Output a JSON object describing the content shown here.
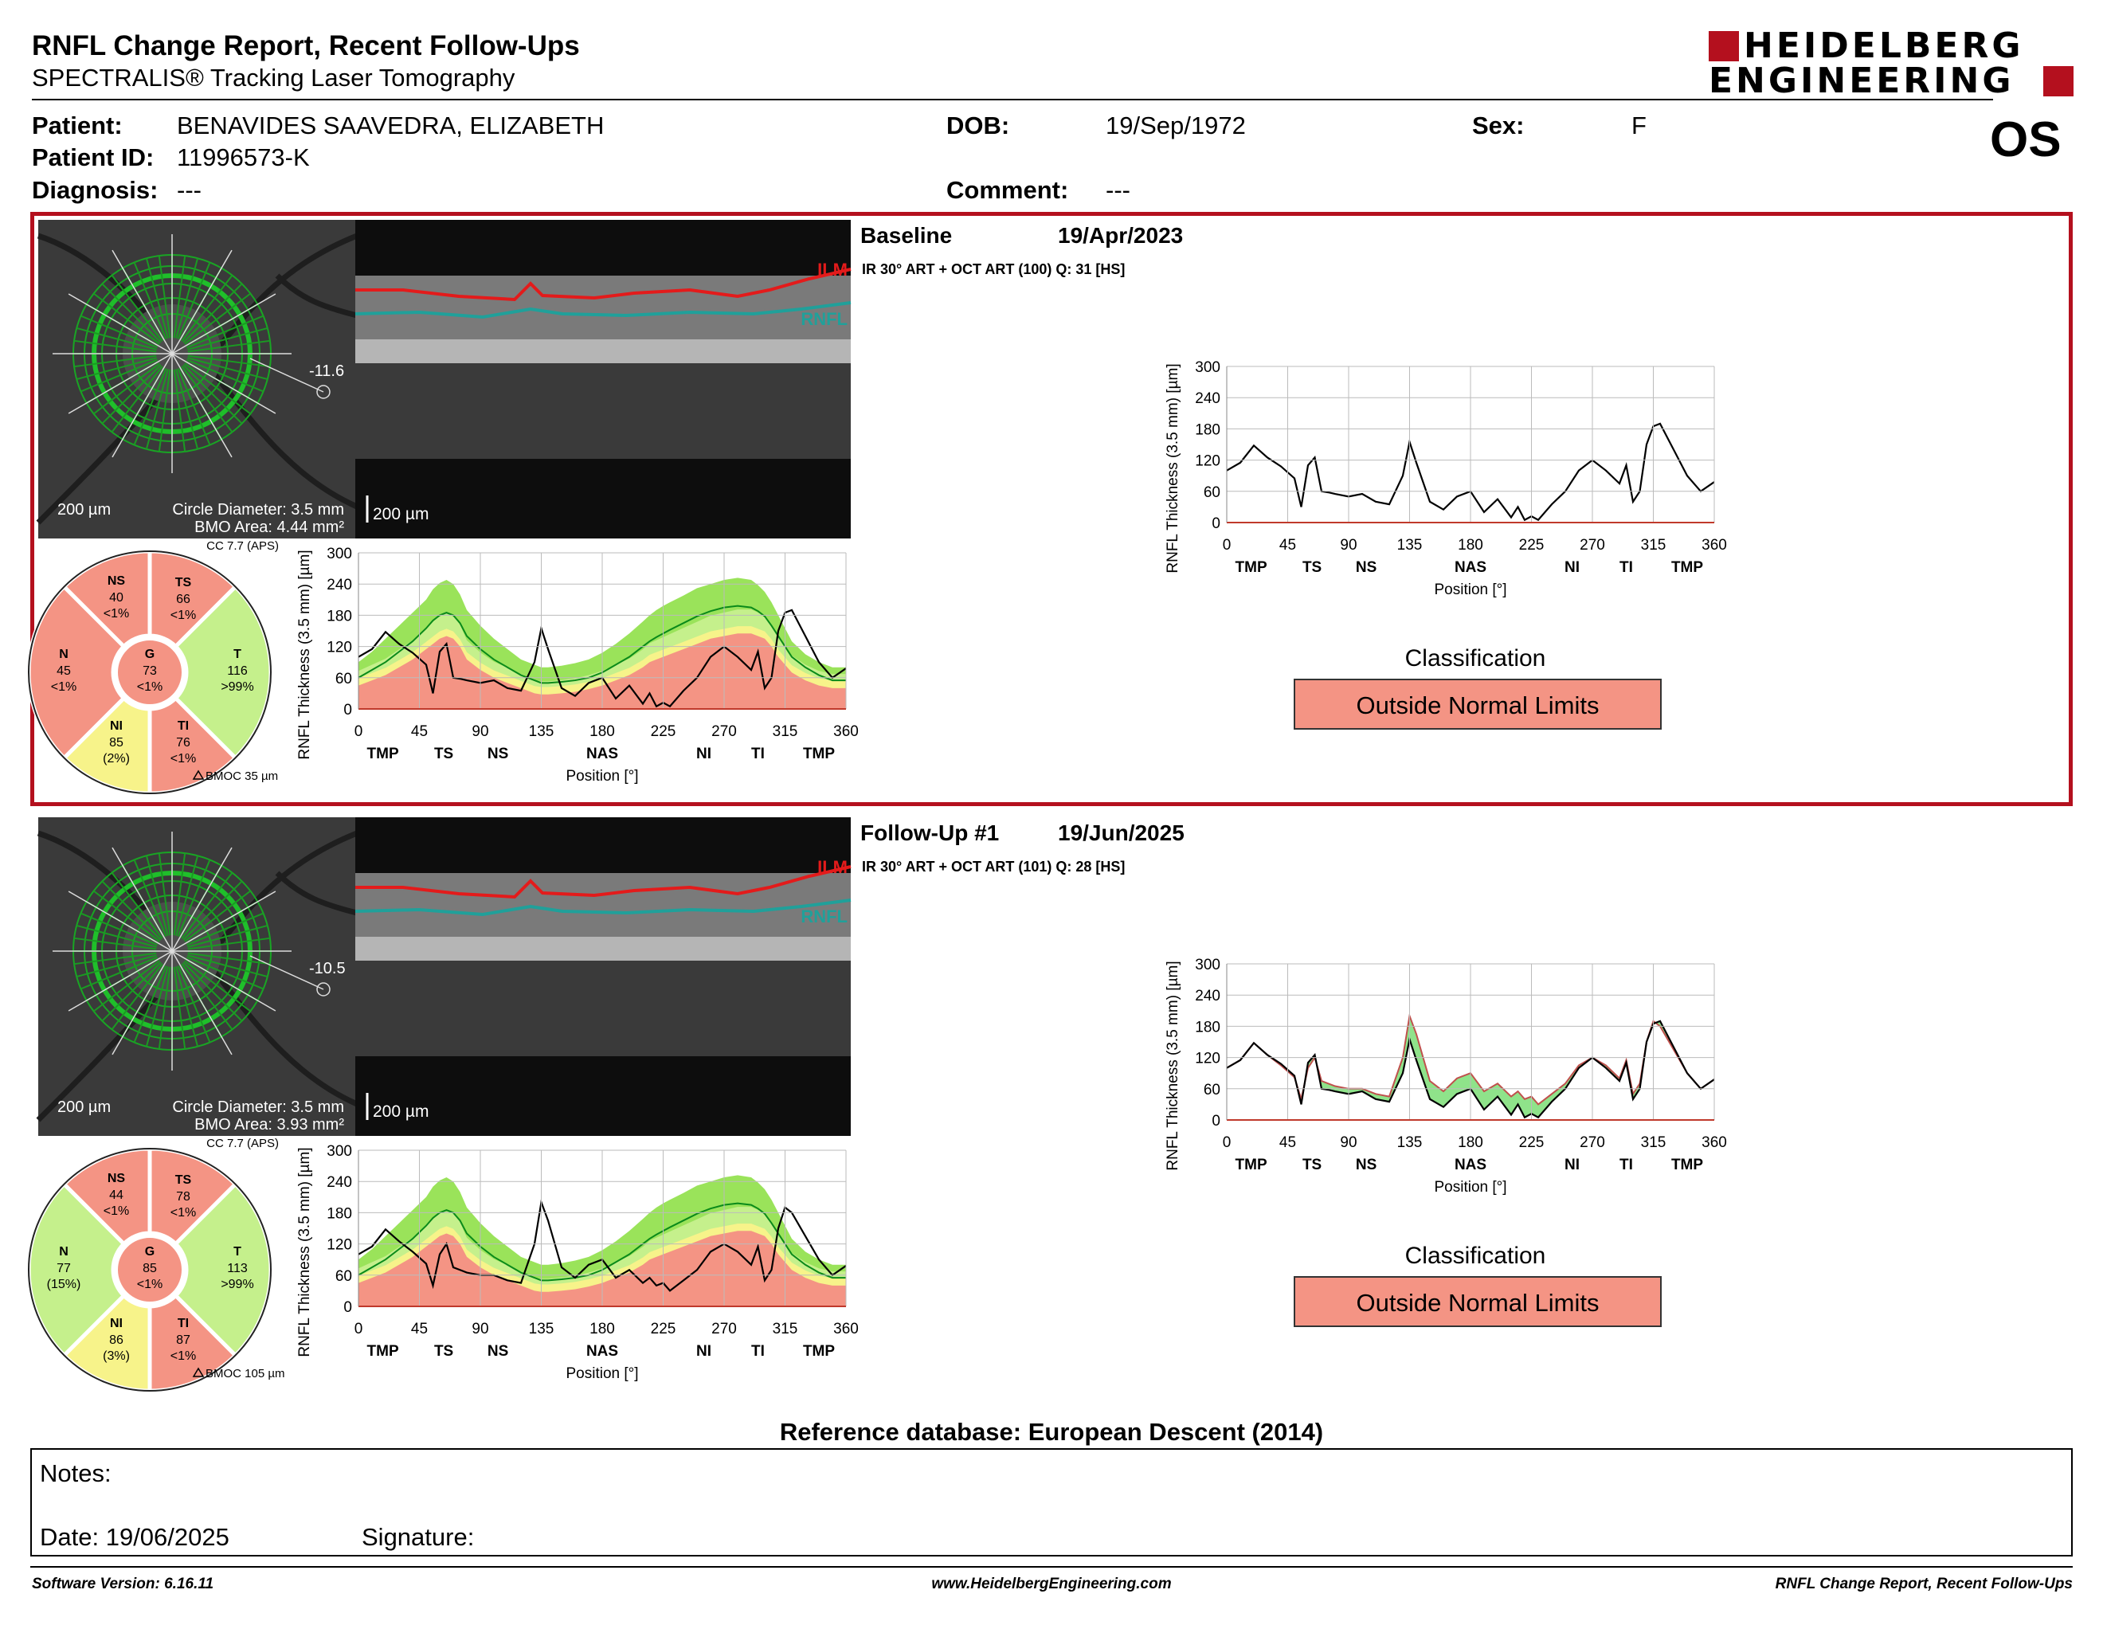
{
  "header": {
    "title": "RNFL Change Report, Recent Follow-Ups",
    "subtitle": "SPECTRALIS® Tracking Laser Tomography",
    "logo_line1": "HEIDELBERG",
    "logo_line2": "ENGINEERING",
    "eye": "OS"
  },
  "patient": {
    "patient_label": "Patient:",
    "patient_value": "BENAVIDES SAAVEDRA, ELIZABETH",
    "dob_label": "DOB:",
    "dob_value": "19/Sep/1972",
    "sex_label": "Sex:",
    "sex_value": "F",
    "id_label": "Patient ID:",
    "id_value": "11996573-K",
    "diagnosis_label": "Diagnosis:",
    "diagnosis_value": "---",
    "comment_label": "Comment:",
    "comment_value": "---"
  },
  "colors": {
    "frame_red": "#b4101e",
    "outside_normal": "#f49484",
    "borderline": "#f7f38a",
    "within_normal": "#c5f08c",
    "green_band": "#9ae35a",
    "green_line": "#0a8a1a"
  },
  "exams": [
    {
      "section_label": "Baseline",
      "date": "19/Apr/2023",
      "scan_info": "IR 30° ART + OCT ART (100) Q: 31 [HS]",
      "fundus_angle": "-11.6",
      "scale_fundus": "200 µm",
      "circle_diameter": "Circle Diameter: 3.5 mm",
      "bmo_area": "BMO Area: 4.44 mm²",
      "scale_bscan": "200 µm",
      "ilm_label": "ILM",
      "rnfl_label": "RNFL",
      "cc": "CC 7.7 (APS)",
      "bmoc": "BMOC 35 µm",
      "sectors": {
        "NS": {
          "label": "NS",
          "value": "40",
          "pct": "<1%",
          "color": "#f49484"
        },
        "TS": {
          "label": "TS",
          "value": "66",
          "pct": "<1%",
          "color": "#f49484"
        },
        "N": {
          "label": "N",
          "value": "45",
          "pct": "<1%",
          "color": "#f49484"
        },
        "G": {
          "label": "G",
          "value": "73",
          "pct": "<1%",
          "color": "#f49484"
        },
        "T": {
          "label": "T",
          "value": "116",
          "pct": ">99%",
          "color": "#c5f08c"
        },
        "NI": {
          "label": "NI",
          "value": "85",
          "pct": "(2%)",
          "color": "#f7f38a"
        },
        "TI": {
          "label": "TI",
          "value": "76",
          "pct": "<1%",
          "color": "#f49484"
        }
      },
      "classification_title": "Classification",
      "classification": "Outside Normal Limits"
    },
    {
      "section_label": "Follow-Up #1",
      "date": "19/Jun/2025",
      "scan_info": "IR 30° ART + OCT ART (101) Q: 28 [HS]",
      "fundus_angle": "-10.5",
      "scale_fundus": "200 µm",
      "circle_diameter": "Circle Diameter: 3.5 mm",
      "bmo_area": "BMO Area: 3.93 mm²",
      "scale_bscan": "200 µm",
      "ilm_label": "ILM",
      "rnfl_label": "RNFL",
      "cc": "CC 7.7 (APS)",
      "bmoc": "BMOC 105 µm",
      "sectors": {
        "NS": {
          "label": "NS",
          "value": "44",
          "pct": "<1%",
          "color": "#f49484"
        },
        "TS": {
          "label": "TS",
          "value": "78",
          "pct": "<1%",
          "color": "#f49484"
        },
        "N": {
          "label": "N",
          "value": "77",
          "pct": "(15%)",
          "color": "#c5f08c"
        },
        "G": {
          "label": "G",
          "value": "85",
          "pct": "<1%",
          "color": "#f49484"
        },
        "T": {
          "label": "T",
          "value": "113",
          "pct": ">99%",
          "color": "#c5f08c"
        },
        "NI": {
          "label": "NI",
          "value": "86",
          "pct": "(3%)",
          "color": "#f7f38a"
        },
        "TI": {
          "label": "TI",
          "value": "87",
          "pct": "<1%",
          "color": "#f49484"
        }
      },
      "classification_title": "Classification",
      "classification": "Outside Normal Limits"
    }
  ],
  "chart_data": [
    {
      "type": "line",
      "ylabel": "RNFL Thickness (3.5 mm) [µm]",
      "xlabel": "Position [°]",
      "ylim": [
        0,
        300
      ],
      "xlim": [
        0,
        360
      ],
      "yticks": [
        0,
        60,
        120,
        180,
        240,
        300
      ],
      "xticks": [
        0,
        45,
        90,
        135,
        180,
        225,
        270,
        315,
        360
      ],
      "sector_labels": [
        "TMP",
        "TS",
        "NS",
        "NAS",
        "NI",
        "TI",
        "TMP"
      ],
      "sector_positions": [
        18,
        63,
        103,
        180,
        255,
        295,
        340
      ],
      "x": [
        0,
        10,
        20,
        30,
        40,
        50,
        55,
        60,
        65,
        70,
        75,
        80,
        90,
        100,
        110,
        120,
        130,
        135,
        140,
        150,
        160,
        170,
        180,
        190,
        200,
        210,
        215,
        220,
        225,
        230,
        240,
        250,
        260,
        270,
        280,
        290,
        295,
        300,
        305,
        310,
        315,
        320,
        330,
        340,
        350,
        360
      ],
      "series": [
        {
          "values": [
            100,
            115,
            148,
            125,
            108,
            85,
            30,
            110,
            125,
            60,
            58,
            55,
            50,
            55,
            40,
            35,
            90,
            155,
            115,
            40,
            25,
            50,
            60,
            20,
            45,
            10,
            30,
            5,
            12,
            5,
            35,
            60,
            100,
            120,
            100,
            75,
            110,
            40,
            60,
            150,
            185,
            190,
            140,
            90,
            60,
            78
          ]
        },
        {
          "values": [
            45,
            55,
            65,
            80,
            95,
            115,
            125,
            135,
            140,
            135,
            120,
            95,
            75,
            60,
            50,
            40,
            30,
            28,
            28,
            30,
            33,
            38,
            45,
            55,
            65,
            80,
            90,
            95,
            100,
            105,
            115,
            125,
            135,
            140,
            145,
            145,
            140,
            135,
            120,
            100,
            85,
            70,
            55,
            45,
            40,
            40
          ]
        },
        {
          "values": [
            60,
            75,
            90,
            110,
            130,
            155,
            170,
            180,
            185,
            180,
            165,
            140,
            115,
            95,
            80,
            65,
            55,
            50,
            50,
            52,
            55,
            60,
            70,
            85,
            100,
            120,
            130,
            138,
            145,
            152,
            165,
            178,
            188,
            195,
            198,
            195,
            188,
            178,
            160,
            140,
            120,
            100,
            80,
            65,
            55,
            55
          ]
        },
        {
          "values": [
            90,
            110,
            135,
            160,
            185,
            210,
            230,
            242,
            248,
            240,
            220,
            190,
            160,
            135,
            115,
            95,
            85,
            80,
            80,
            83,
            88,
            95,
            108,
            125,
            145,
            168,
            180,
            190,
            198,
            205,
            218,
            232,
            240,
            248,
            252,
            248,
            238,
            225,
            205,
            180,
            155,
            130,
            105,
            90,
            80,
            80
          ]
        }
      ]
    },
    {
      "type": "line",
      "ylabel": "RNFL Thickness (3.5 mm) [µm]",
      "xlabel": "Position [°]",
      "ylim": [
        0,
        300
      ],
      "xlim": [
        0,
        360
      ],
      "yticks": [
        0,
        60,
        120,
        180,
        240,
        300
      ],
      "xticks": [
        0,
        45,
        90,
        135,
        180,
        225,
        270,
        315,
        360
      ],
      "sector_labels": [
        "TMP",
        "TS",
        "NS",
        "NAS",
        "NI",
        "TI",
        "TMP"
      ],
      "sector_positions": [
        18,
        63,
        103,
        180,
        255,
        295,
        340
      ],
      "x": [
        0,
        10,
        20,
        30,
        40,
        50,
        55,
        60,
        65,
        70,
        75,
        80,
        90,
        100,
        110,
        120,
        130,
        135,
        140,
        150,
        160,
        170,
        180,
        190,
        200,
        210,
        215,
        220,
        225,
        230,
        240,
        250,
        260,
        270,
        280,
        290,
        295,
        300,
        305,
        310,
        315,
        320,
        330,
        340,
        350,
        360
      ],
      "series": [
        {
          "values": [
            100,
            115,
            148,
            125,
            105,
            82,
            40,
            100,
            120,
            75,
            70,
            65,
            60,
            60,
            50,
            45,
            120,
            200,
            165,
            75,
            55,
            80,
            90,
            55,
            70,
            45,
            55,
            40,
            45,
            30,
            50,
            70,
            105,
            120,
            105,
            80,
            115,
            50,
            70,
            150,
            190,
            180,
            135,
            90,
            60,
            78
          ]
        }
      ]
    },
    {
      "type": "line",
      "ylabel": "RNFL Thickness (3.5 mm) [µm]",
      "xlabel": "Position [°]",
      "ylim": [
        0,
        300
      ],
      "xlim": [
        0,
        360
      ],
      "yticks": [
        0,
        60,
        120,
        180,
        240,
        300
      ],
      "xticks": [
        0,
        45,
        90,
        135,
        180,
        225,
        270,
        315,
        360
      ],
      "sector_labels": [
        "TMP",
        "TS",
        "NS",
        "NAS",
        "NI",
        "TI",
        "TMP"
      ],
      "sector_positions": [
        18,
        63,
        103,
        180,
        255,
        295,
        340
      ],
      "x": [
        0,
        10,
        20,
        30,
        40,
        50,
        55,
        60,
        65,
        70,
        75,
        80,
        90,
        100,
        110,
        120,
        130,
        135,
        140,
        150,
        160,
        170,
        180,
        190,
        200,
        210,
        215,
        220,
        225,
        230,
        240,
        250,
        260,
        270,
        280,
        290,
        295,
        300,
        305,
        310,
        315,
        320,
        330,
        340,
        350,
        360
      ],
      "series": [
        {
          "values": [
            100,
            115,
            148,
            125,
            105,
            82,
            40,
            100,
            120,
            75,
            70,
            65,
            60,
            60,
            50,
            45,
            120,
            200,
            165,
            75,
            55,
            80,
            90,
            55,
            70,
            45,
            55,
            40,
            45,
            30,
            50,
            70,
            105,
            120,
            105,
            80,
            115,
            50,
            70,
            150,
            190,
            180,
            135,
            90,
            60,
            78
          ]
        },
        {
          "values": [
            45,
            55,
            65,
            80,
            95,
            115,
            125,
            135,
            140,
            135,
            120,
            95,
            75,
            60,
            50,
            40,
            30,
            28,
            28,
            30,
            33,
            38,
            45,
            55,
            65,
            80,
            90,
            95,
            100,
            105,
            115,
            125,
            135,
            140,
            145,
            145,
            140,
            135,
            120,
            100,
            85,
            70,
            55,
            45,
            40,
            40
          ]
        },
        {
          "values": [
            60,
            75,
            90,
            110,
            130,
            155,
            170,
            180,
            185,
            180,
            165,
            140,
            115,
            95,
            80,
            65,
            55,
            50,
            50,
            52,
            55,
            60,
            70,
            85,
            100,
            120,
            130,
            138,
            145,
            152,
            165,
            178,
            188,
            195,
            198,
            195,
            188,
            178,
            160,
            140,
            120,
            100,
            80,
            65,
            55,
            55
          ]
        },
        {
          "values": [
            90,
            110,
            135,
            160,
            185,
            210,
            230,
            242,
            248,
            240,
            220,
            190,
            160,
            135,
            115,
            95,
            85,
            80,
            80,
            83,
            88,
            95,
            108,
            125,
            145,
            168,
            180,
            190,
            198,
            205,
            218,
            232,
            240,
            248,
            252,
            248,
            238,
            225,
            205,
            180,
            155,
            130,
            105,
            90,
            80,
            80
          ]
        }
      ]
    },
    {
      "type": "line",
      "ylabel": "RNFL Thickness (3.5 mm) [µm]",
      "xlabel": "Position [°]",
      "ylim": [
        0,
        300
      ],
      "xlim": [
        0,
        360
      ],
      "yticks": [
        0,
        60,
        120,
        180,
        240,
        300
      ],
      "xticks": [
        0,
        45,
        90,
        135,
        180,
        225,
        270,
        315,
        360
      ],
      "sector_labels": [
        "TMP",
        "TS",
        "NS",
        "NAS",
        "NI",
        "TI",
        "TMP"
      ],
      "sector_positions": [
        18,
        63,
        103,
        180,
        255,
        295,
        340
      ],
      "x": [
        0,
        10,
        20,
        30,
        40,
        50,
        55,
        60,
        65,
        70,
        75,
        80,
        90,
        100,
        110,
        120,
        130,
        135,
        140,
        150,
        160,
        170,
        180,
        190,
        200,
        210,
        215,
        220,
        225,
        230,
        240,
        250,
        260,
        270,
        280,
        290,
        295,
        300,
        305,
        310,
        315,
        320,
        330,
        340,
        350,
        360
      ],
      "series": [
        {
          "values": [
            100,
            115,
            148,
            125,
            105,
            82,
            40,
            100,
            120,
            75,
            70,
            65,
            60,
            60,
            50,
            45,
            120,
            200,
            165,
            75,
            55,
            80,
            90,
            55,
            70,
            45,
            55,
            40,
            45,
            30,
            50,
            70,
            105,
            120,
            105,
            80,
            115,
            50,
            70,
            150,
            190,
            180,
            135,
            90,
            60,
            78
          ]
        },
        {
          "values": [
            100,
            115,
            148,
            125,
            108,
            85,
            30,
            110,
            125,
            60,
            58,
            55,
            50,
            55,
            40,
            35,
            90,
            155,
            115,
            40,
            25,
            50,
            60,
            20,
            45,
            10,
            30,
            5,
            12,
            5,
            35,
            60,
            100,
            120,
            100,
            75,
            110,
            40,
            60,
            150,
            185,
            190,
            140,
            90,
            60,
            78
          ]
        }
      ]
    }
  ],
  "reference_db": "Reference database: European Descent (2014)",
  "notes": {
    "notes_label": "Notes:",
    "date_label": "Date: 19/06/2025",
    "signature_label": "Signature:"
  },
  "footer": {
    "software": "Software Version: 6.16.11",
    "website": "www.HeidelbergEngineering.com",
    "report_name": "RNFL Change Report, Recent Follow-Ups"
  }
}
